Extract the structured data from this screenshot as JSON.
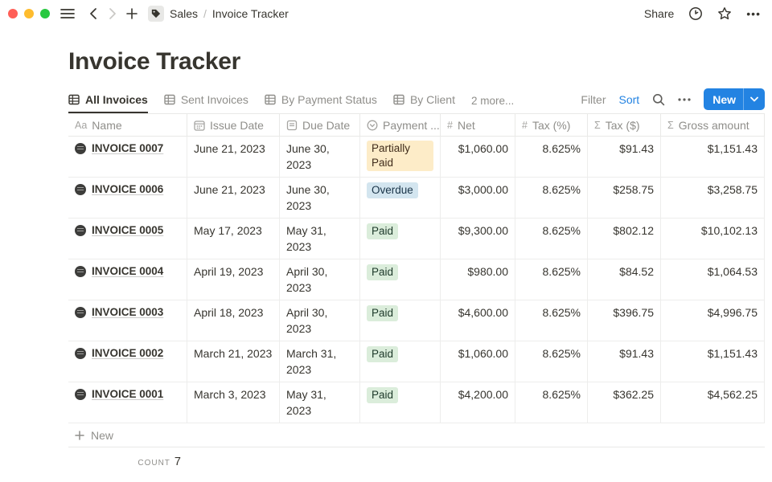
{
  "topbar": {
    "traffic_lights": {
      "close": "#ff5f57",
      "minimize": "#febc2e",
      "zoom": "#28c840"
    },
    "breadcrumb": {
      "workspace": "Sales",
      "separator": "/",
      "page": "Invoice Tracker"
    },
    "share_label": "Share",
    "more_dots": "•••"
  },
  "page": {
    "title": "Invoice Tracker"
  },
  "views": {
    "tabs": [
      {
        "label": "All Invoices",
        "active": true
      },
      {
        "label": "Sent Invoices",
        "active": false
      },
      {
        "label": "By Payment Status",
        "active": false
      },
      {
        "label": "By Client",
        "active": false
      }
    ],
    "more_label": "2 more...",
    "filter_label": "Filter",
    "sort_label": "Sort",
    "new_button_label": "New"
  },
  "table": {
    "columns": [
      {
        "label": "Name",
        "icon": "field-text"
      },
      {
        "label": "Issue Date",
        "icon": "calendar"
      },
      {
        "label": "Due Date",
        "icon": "doc"
      },
      {
        "label": "Payment ...",
        "icon": "select"
      },
      {
        "label": "Net",
        "icon": "hash"
      },
      {
        "label": "Tax (%)",
        "icon": "hash"
      },
      {
        "label": "Tax ($)",
        "icon": "sigma"
      },
      {
        "label": "Gross amount",
        "icon": "sigma"
      }
    ],
    "icon_glyphs": {
      "field-text": "Aa",
      "hash": "#",
      "sigma": "Σ"
    },
    "rows": [
      {
        "name": "INVOICE 0007",
        "issue_date": "June 21, 2023",
        "due_date": "June 30, 2023",
        "status": "Partially Paid",
        "status_color": "yellow",
        "net": "$1,060.00",
        "tax_pct": "8.625%",
        "tax_usd": "$91.43",
        "gross": "$1,151.43",
        "tall": false
      },
      {
        "name": "INVOICE 0006",
        "issue_date": "June 21, 2023",
        "due_date": "June 30, 2023",
        "status": "Overdue",
        "status_color": "blue",
        "net": "$3,000.00",
        "tax_pct": "8.625%",
        "tax_usd": "$258.75",
        "gross": "$3,258.75",
        "tall": true
      },
      {
        "name": "INVOICE 0005",
        "issue_date": "May 17, 2023",
        "due_date": "May 31, 2023",
        "status": "Paid",
        "status_color": "green",
        "net": "$9,300.00",
        "tax_pct": "8.625%",
        "tax_usd": "$802.12",
        "gross": "$10,102.13",
        "tall": false
      },
      {
        "name": "INVOICE 0004",
        "issue_date": "April 19, 2023",
        "due_date": "April 30, 2023",
        "status": "Paid",
        "status_color": "green",
        "net": "$980.00",
        "tax_pct": "8.625%",
        "tax_usd": "$84.52",
        "gross": "$1,064.53",
        "tall": true
      },
      {
        "name": "INVOICE 0003",
        "issue_date": "April 18, 2023",
        "due_date": "April 30, 2023",
        "status": "Paid",
        "status_color": "green",
        "net": "$4,600.00",
        "tax_pct": "8.625%",
        "tax_usd": "$396.75",
        "gross": "$4,996.75",
        "tall": false
      },
      {
        "name": "INVOICE 0002",
        "issue_date": "March 21, 2023",
        "due_date": "March 31, 2023",
        "status": "Paid",
        "status_color": "green",
        "net": "$1,060.00",
        "tax_pct": "8.625%",
        "tax_usd": "$91.43",
        "gross": "$1,151.43",
        "tall": true
      },
      {
        "name": "INVOICE 0001",
        "issue_date": "March 3, 2023",
        "due_date": "May 31, 2023",
        "status": "Paid",
        "status_color": "green",
        "net": "$4,200.00",
        "tax_pct": "8.625%",
        "tax_usd": "$362.25",
        "gross": "$4,562.25",
        "tall": true
      }
    ],
    "new_row_label": "New",
    "count_label": "COUNT",
    "count_value": "7"
  },
  "colors": {
    "accent_blue": "#2383e2",
    "badge_yellow": "#fdecc8",
    "badge_blue": "#d3e5ef",
    "badge_green": "#dbeddb",
    "border": "#e9e9e7",
    "text": "#37352f",
    "muted": "#8f8e8a"
  }
}
